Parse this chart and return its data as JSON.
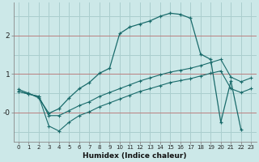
{
  "xlabel": "Humidex (Indice chaleur)",
  "background_color": "#cce8e8",
  "grid_color": "#aacece",
  "line_color": "#1a6b6b",
  "xlim": [
    -0.5,
    23.5
  ],
  "ylim": [
    -0.75,
    2.85
  ],
  "yticks": [
    0,
    1,
    2
  ],
  "ytick_labels": [
    "-0",
    "1",
    "2"
  ],
  "xticks": [
    0,
    1,
    2,
    3,
    4,
    5,
    6,
    7,
    8,
    9,
    10,
    11,
    12,
    13,
    14,
    15,
    16,
    17,
    18,
    19,
    20,
    21,
    22,
    23
  ],
  "hline_y": [
    0.0,
    1.0,
    2.0
  ],
  "curve1_x": [
    0,
    1,
    2,
    3,
    4,
    5,
    6,
    7,
    8,
    9,
    10,
    11,
    12,
    13,
    14,
    15,
    16,
    17,
    18,
    19,
    20,
    21,
    22
  ],
  "curve1_y": [
    0.6,
    0.5,
    0.38,
    -0.02,
    0.1,
    0.38,
    0.62,
    0.78,
    1.02,
    1.15,
    2.05,
    2.22,
    2.3,
    2.38,
    2.5,
    2.58,
    2.55,
    2.45,
    1.52,
    1.38,
    -0.25,
    0.82,
    -0.45
  ],
  "curve2_x": [
    0,
    1,
    2,
    3,
    4,
    5,
    6,
    7,
    8,
    9,
    10,
    11,
    12,
    13,
    14,
    15,
    16,
    17,
    18,
    19,
    20,
    21,
    22,
    23
  ],
  "curve2_y": [
    0.55,
    0.48,
    0.42,
    -0.08,
    -0.08,
    0.05,
    0.18,
    0.28,
    0.42,
    0.52,
    0.62,
    0.72,
    0.82,
    0.9,
    0.98,
    1.05,
    1.1,
    1.15,
    1.22,
    1.3,
    1.38,
    0.92,
    0.8,
    0.9
  ],
  "curve3_x": [
    0,
    1,
    2,
    3,
    4,
    5,
    6,
    7,
    8,
    9,
    10,
    11,
    12,
    13,
    14,
    15,
    16,
    17,
    18,
    19,
    20,
    21,
    22,
    23
  ],
  "curve3_y": [
    0.55,
    0.48,
    0.42,
    -0.35,
    -0.48,
    -0.25,
    -0.08,
    0.02,
    0.15,
    0.25,
    0.35,
    0.45,
    0.55,
    0.62,
    0.7,
    0.78,
    0.83,
    0.88,
    0.95,
    1.02,
    1.08,
    0.62,
    0.52,
    0.62
  ]
}
